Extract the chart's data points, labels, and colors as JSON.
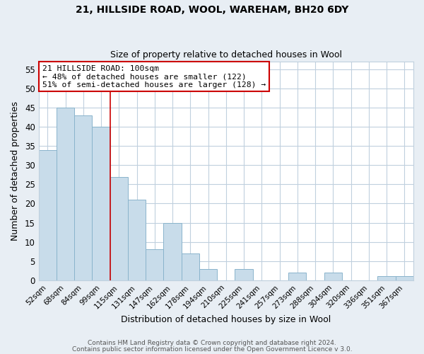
{
  "title": "21, HILLSIDE ROAD, WOOL, WAREHAM, BH20 6DY",
  "subtitle": "Size of property relative to detached houses in Wool",
  "xlabel": "Distribution of detached houses by size in Wool",
  "ylabel": "Number of detached properties",
  "bar_color": "#c8dcea",
  "bar_edge_color": "#8ab4cc",
  "marker_line_color": "#cc0000",
  "categories": [
    "52sqm",
    "68sqm",
    "84sqm",
    "99sqm",
    "115sqm",
    "131sqm",
    "147sqm",
    "162sqm",
    "178sqm",
    "194sqm",
    "210sqm",
    "225sqm",
    "241sqm",
    "257sqm",
    "273sqm",
    "288sqm",
    "304sqm",
    "320sqm",
    "336sqm",
    "351sqm",
    "367sqm"
  ],
  "values": [
    34,
    45,
    43,
    40,
    27,
    21,
    8,
    15,
    7,
    3,
    0,
    3,
    0,
    0,
    2,
    0,
    2,
    0,
    0,
    1,
    1
  ],
  "marker_index": 3,
  "ylim": [
    0,
    57
  ],
  "yticks": [
    0,
    5,
    10,
    15,
    20,
    25,
    30,
    35,
    40,
    45,
    50,
    55
  ],
  "annotation_title": "21 HILLSIDE ROAD: 100sqm",
  "annotation_line1": "← 48% of detached houses are smaller (122)",
  "annotation_line2": "51% of semi-detached houses are larger (128) →",
  "footer_line1": "Contains HM Land Registry data © Crown copyright and database right 2024.",
  "footer_line2": "Contains public sector information licensed under the Open Government Licence v 3.0.",
  "background_color": "#e8eef4",
  "plot_background": "#ffffff",
  "grid_color": "#c0d0de"
}
